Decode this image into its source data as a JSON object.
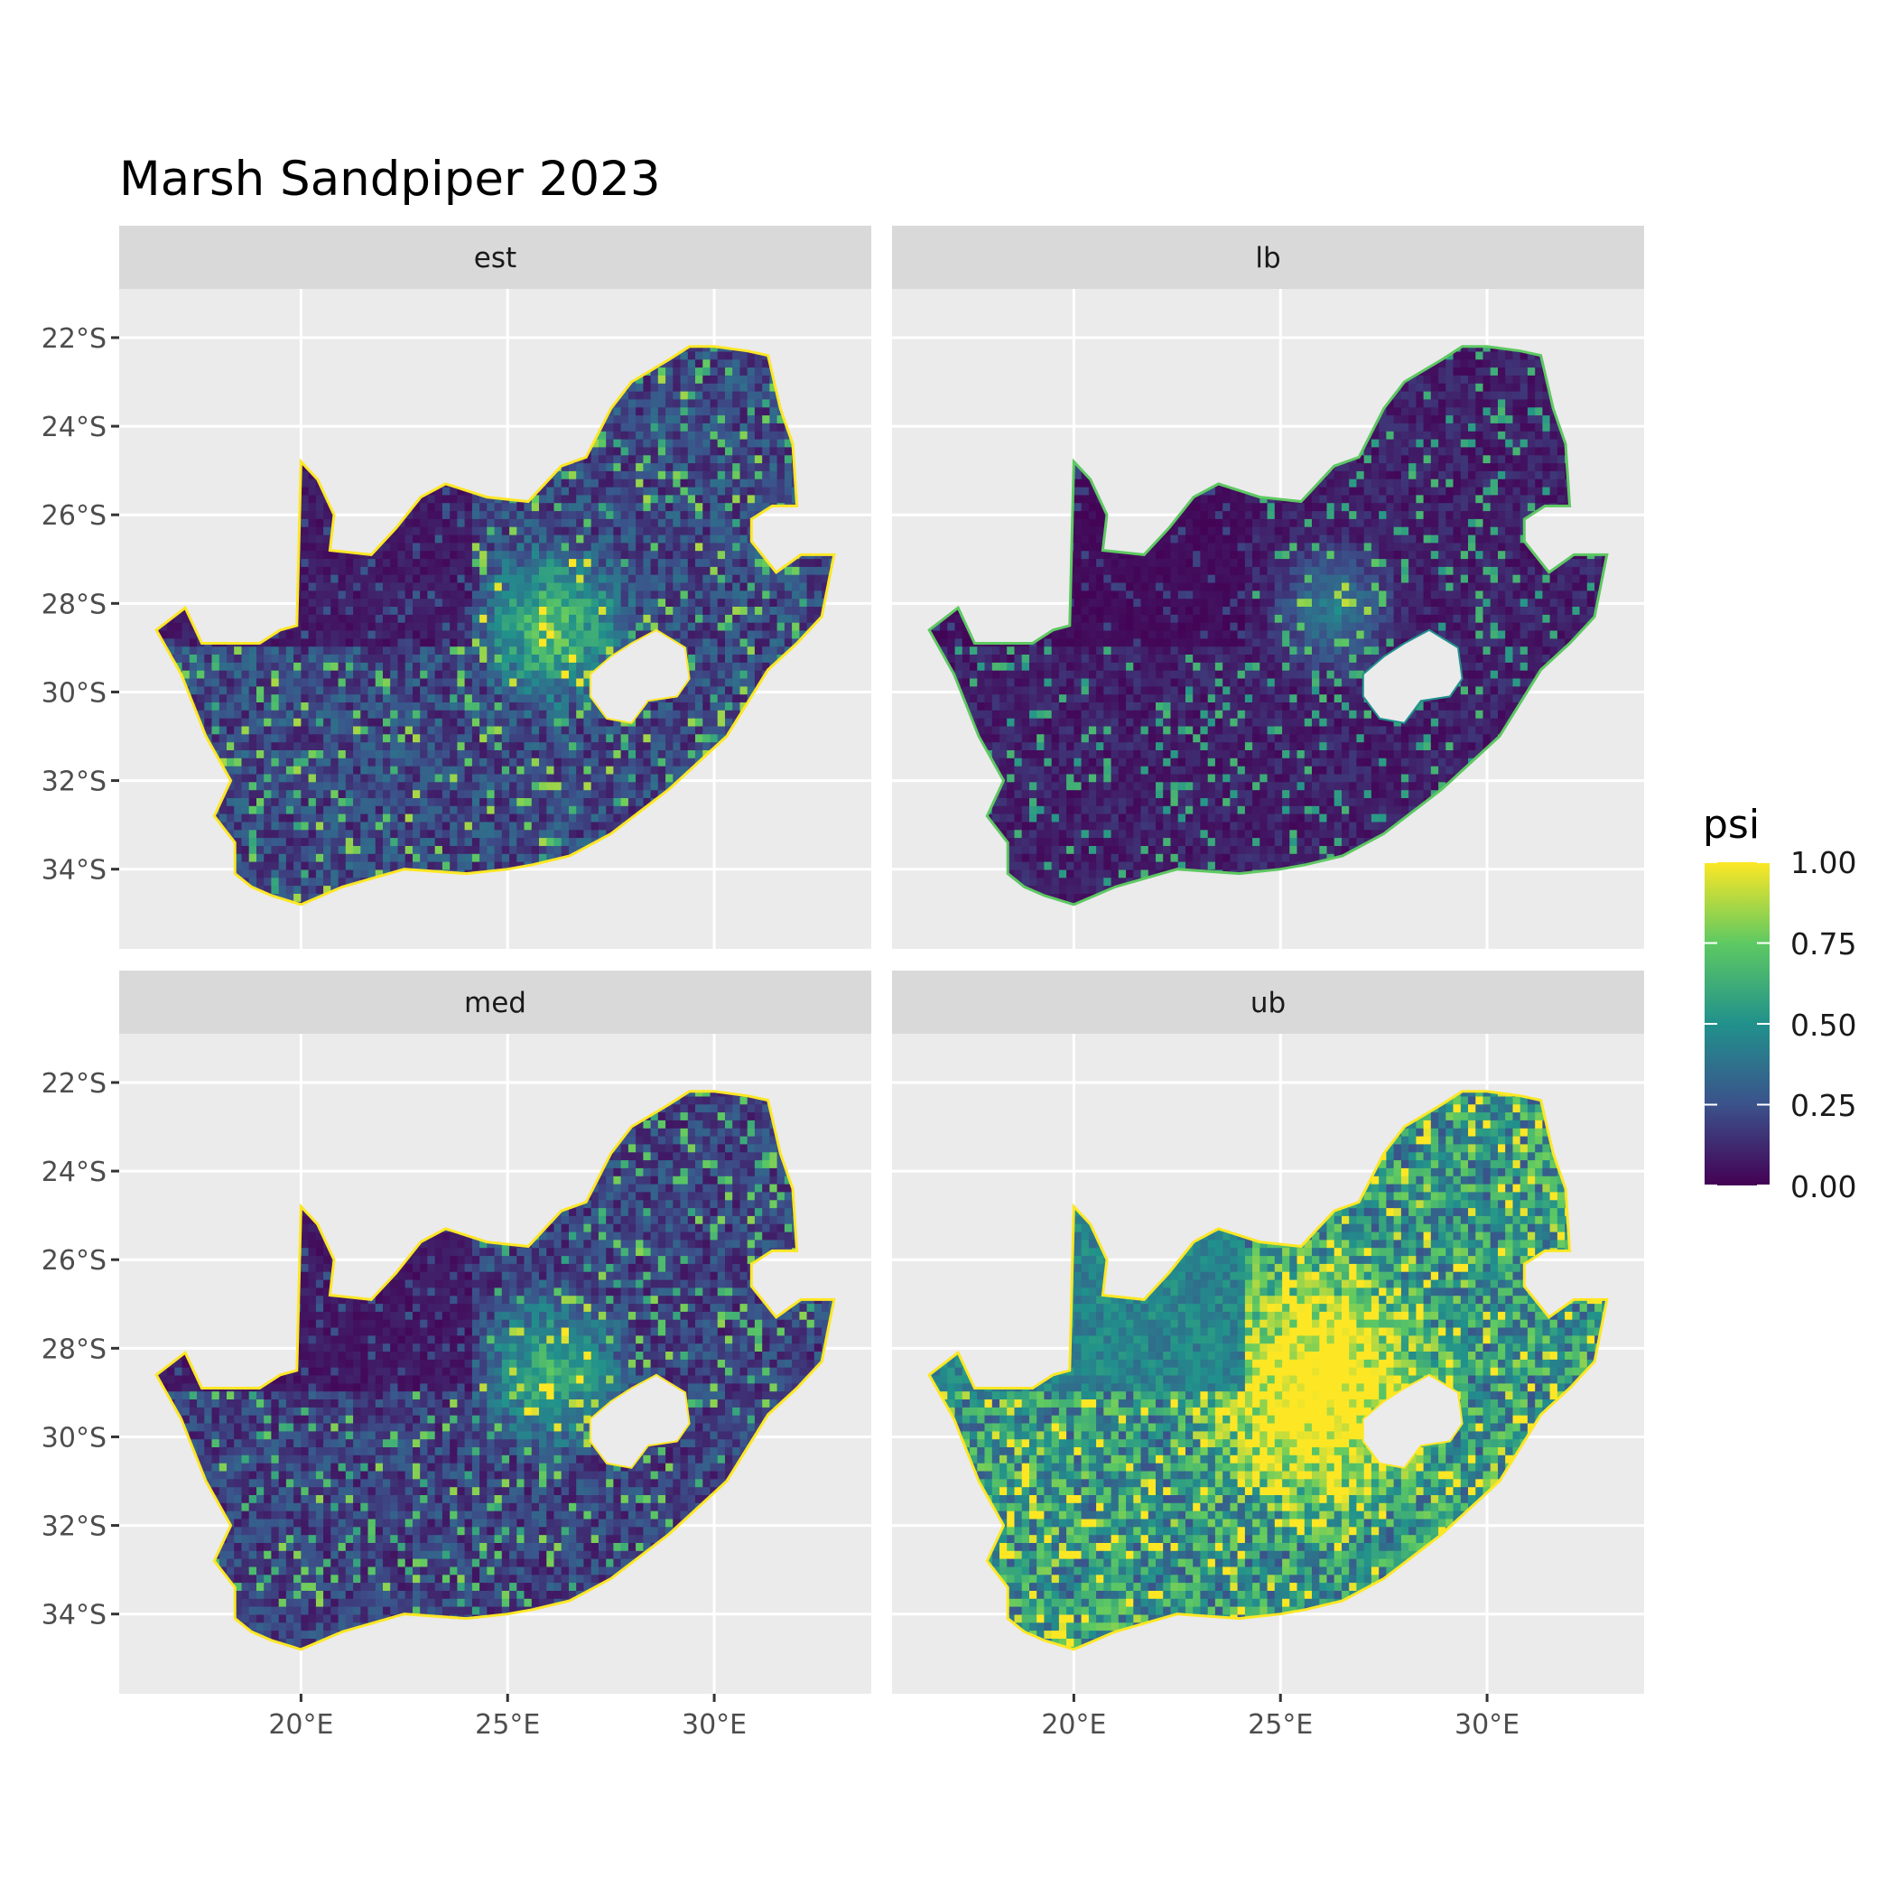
{
  "title": "Marsh Sandpiper 2023",
  "legend": {
    "title": "psi",
    "labels": [
      "1.00",
      "0.75",
      "0.50",
      "0.25",
      "0.00"
    ],
    "values": [
      1.0,
      0.75,
      0.5,
      0.25,
      0.0
    ],
    "colormap": "viridis",
    "colors": [
      "#440154",
      "#3b528b",
      "#21918c",
      "#5ec962",
      "#fde725"
    ]
  },
  "panel_background": "#ebebeb",
  "strip_background": "#d9d9d9",
  "chart_data": {
    "type": "heatmap",
    "title": "Marsh Sandpiper 2023",
    "facets": [
      "est",
      "lb",
      "med",
      "ub"
    ],
    "x_ticks": [
      {
        "value": 20,
        "label": "20°E"
      },
      {
        "value": 25,
        "label": "25°E"
      },
      {
        "value": 30,
        "label": "30°E"
      }
    ],
    "y_ticks": [
      {
        "value": -22,
        "label": "22°S"
      },
      {
        "value": -24,
        "label": "24°S"
      },
      {
        "value": -26,
        "label": "26°S"
      },
      {
        "value": -28,
        "label": "28°S"
      },
      {
        "value": -30,
        "label": "30°S"
      },
      {
        "value": -32,
        "label": "32°S"
      },
      {
        "value": -34,
        "label": "34°S"
      }
    ],
    "xlim": [
      15.6,
      33.8
    ],
    "ylim": [
      -35.8,
      -20.9
    ],
    "fill_variable": "psi",
    "fill_range": [
      0,
      1
    ],
    "grid": true
  }
}
